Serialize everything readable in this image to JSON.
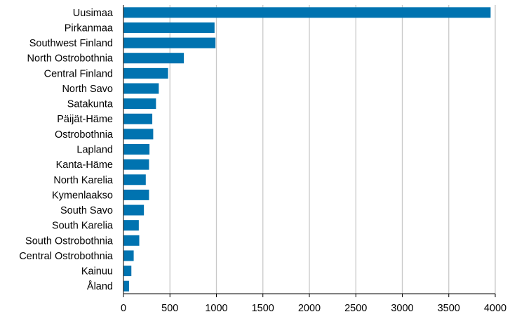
{
  "chart_data": {
    "type": "bar",
    "orientation": "horizontal",
    "title": "",
    "xlabel": "",
    "ylabel": "",
    "categories": [
      "Uusimaa",
      "Pirkanmaa",
      "Southwest Finland",
      "North Ostrobothnia",
      "Central Finland",
      "North Savo",
      "Satakunta",
      "Päijät-Häme",
      "Ostrobothnia",
      "Lapland",
      "Kanta-Häme",
      "North Karelia",
      "Kymenlaakso",
      "South Savo",
      "South Karelia",
      "South Ostrobothnia",
      "Central Ostrobothnia",
      "Kainuu",
      "Åland"
    ],
    "values": [
      3950,
      980,
      990,
      650,
      480,
      380,
      350,
      310,
      320,
      280,
      275,
      240,
      275,
      220,
      165,
      170,
      110,
      85,
      60
    ],
    "xlim": [
      0,
      4000
    ],
    "xticks": [
      0,
      500,
      1000,
      1500,
      2000,
      2500,
      3000,
      3500,
      4000
    ],
    "grid": true,
    "bar_color": "#0073b0",
    "grid_color": "#c8c8c8"
  }
}
